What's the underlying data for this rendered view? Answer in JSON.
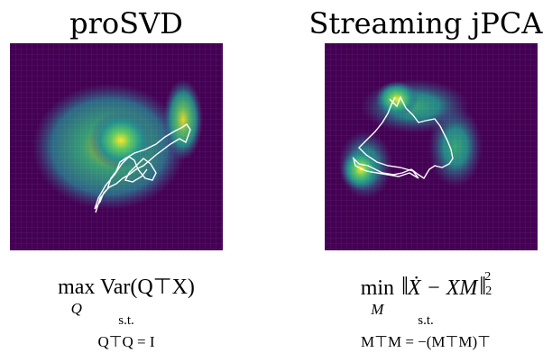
{
  "panels": [
    {
      "title": "proSVD",
      "objective": {
        "operator": "max",
        "subscript": "Q",
        "body": "Var(Q⊤X)"
      },
      "st_label": "s.t.",
      "constraint": "Q⊤Q = I"
    },
    {
      "title": "Streaming jPCA",
      "objective": {
        "operator": "min",
        "subscript": "M",
        "body": "Ẋ − XM",
        "sup": "2",
        "sub": "2"
      },
      "st_label": "s.t.",
      "constraint": "M⊤M = −(M⊤M)⊤"
    }
  ],
  "colors": {
    "heat_low": "#440154",
    "heat_mid": "#21918c",
    "heat_high": "#fde725",
    "trajectory": "#ffffff"
  }
}
